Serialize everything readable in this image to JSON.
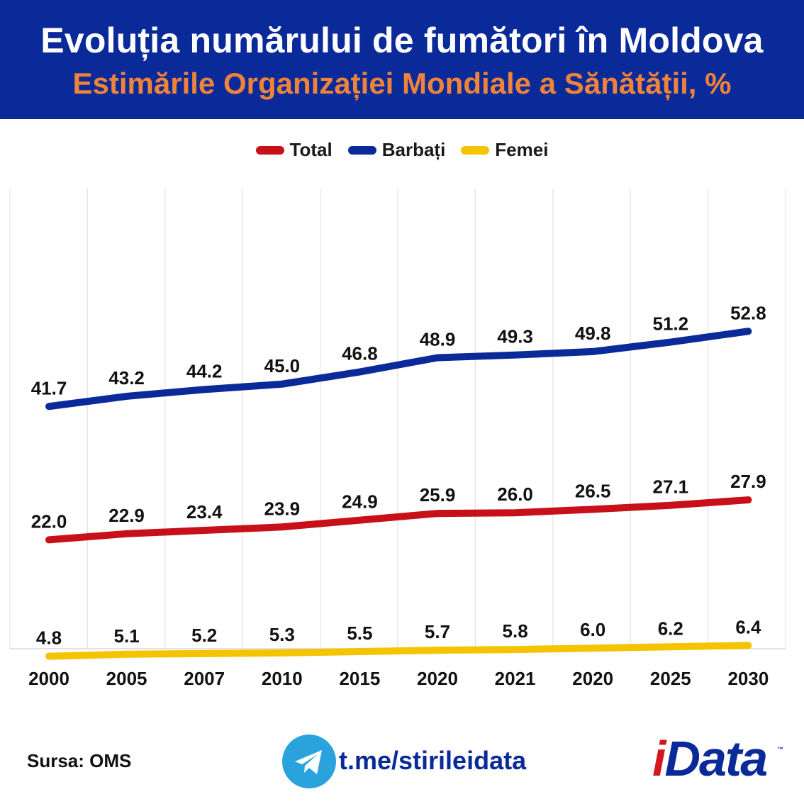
{
  "header": {
    "title": "Evoluția numărului de fumători în Moldova",
    "subtitle": "Estimările Organizației Mondiale a Sănătății, %"
  },
  "chart_data": {
    "type": "line",
    "categories": [
      "2000",
      "2005",
      "2007",
      "2010",
      "2015",
      "2020",
      "2021",
      "2020",
      "2025",
      "2030"
    ],
    "series": [
      {
        "name": "Total",
        "color": "#c8101a",
        "values": [
          22.0,
          22.9,
          23.4,
          23.9,
          24.9,
          25.9,
          26.0,
          26.5,
          27.1,
          27.9
        ]
      },
      {
        "name": "Barbați",
        "color": "#0a2a9a",
        "values": [
          41.7,
          43.2,
          44.2,
          45.0,
          46.8,
          48.9,
          49.3,
          49.8,
          51.2,
          52.8
        ]
      },
      {
        "name": "Femei",
        "color": "#f5c400",
        "values": [
          4.8,
          5.1,
          5.2,
          5.3,
          5.5,
          5.7,
          5.8,
          6.0,
          6.2,
          6.4
        ]
      }
    ],
    "legend_position": "top-center",
    "grid": "vertical",
    "data_labels": true
  },
  "footer": {
    "source": "Sursa: OMS",
    "link": "t.me/stirileidata",
    "logo_i": "i",
    "logo_rest": "Data",
    "logo_tm": "™"
  },
  "icons": {
    "telegram": "telegram-icon"
  }
}
